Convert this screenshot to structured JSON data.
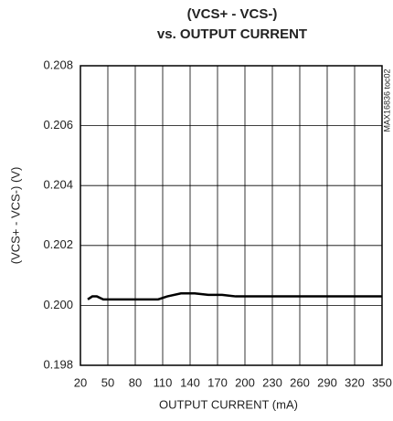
{
  "chart_data": {
    "type": "line",
    "title": [
      "(VCS+ - VCS-)",
      "vs. OUTPUT CURRENT"
    ],
    "xlabel": "OUTPUT CURRENT (mA)",
    "ylabel": "(VCS+ - VCS-) (V)",
    "annotation": "MAX16836 toc02",
    "x": [
      28,
      33,
      38,
      45,
      60,
      80,
      105,
      115,
      130,
      145,
      160,
      175,
      190,
      220,
      260,
      300,
      350
    ],
    "series": [
      {
        "color": "#000000",
        "values": [
          0.2002,
          0.2003,
          0.2003,
          0.2002,
          0.2002,
          0.2002,
          0.2002,
          0.2003,
          0.2004,
          0.2004,
          0.20035,
          0.20035,
          0.2003,
          0.2003,
          0.2003,
          0.2003,
          0.2003
        ]
      }
    ],
    "xlim": [
      20,
      350
    ],
    "xticks": [
      20,
      50,
      80,
      110,
      140,
      170,
      200,
      230,
      260,
      290,
      320,
      350
    ],
    "ylim": [
      0.198,
      0.208
    ],
    "yticks": [
      0.198,
      {
        "value": 0.2,
        "label": "0.200"
      },
      0.202,
      0.204,
      0.206,
      0.208
    ],
    "grid": true
  }
}
